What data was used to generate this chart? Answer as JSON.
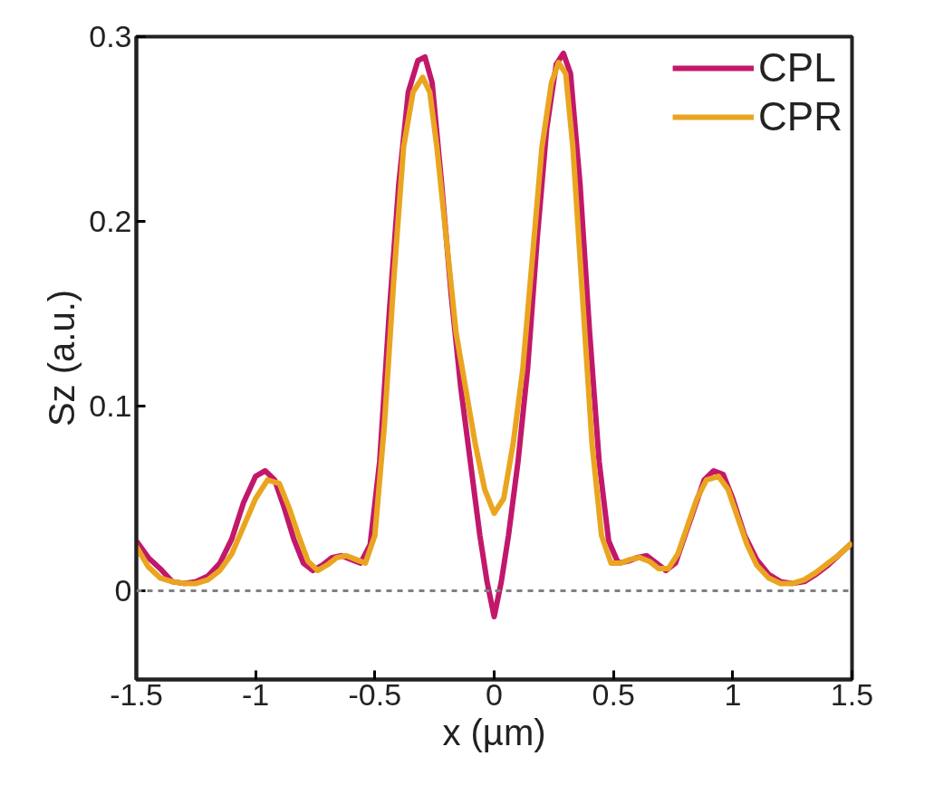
{
  "chart_data": {
    "type": "line",
    "xlabel": "x (µm)",
    "ylabel": "Sz (a.u.)",
    "xlim": [
      -1.5,
      1.5
    ],
    "ylim": [
      -0.048,
      0.3
    ],
    "xticks": [
      -1.5,
      -1,
      -0.5,
      0,
      0.5,
      1,
      1.5
    ],
    "yticks": [
      0,
      0.1,
      0.2,
      0.3
    ],
    "grid": false,
    "legend": "top right",
    "line_style": "solid",
    "ref_lines": [
      {
        "axis": "y",
        "value": 0,
        "color": "#808080",
        "line_style": "dashed"
      }
    ],
    "series": [
      {
        "name": "CPL",
        "color": "#c2186b",
        "x": [
          -1.5,
          -1.45,
          -1.4,
          -1.35,
          -1.3,
          -1.25,
          -1.2,
          -1.15,
          -1.1,
          -1.05,
          -1.0,
          -0.96,
          -0.92,
          -0.88,
          -0.84,
          -0.8,
          -0.76,
          -0.72,
          -0.68,
          -0.64,
          -0.6,
          -0.56,
          -0.52,
          -0.48,
          -0.44,
          -0.4,
          -0.36,
          -0.32,
          -0.29,
          -0.26,
          -0.22,
          -0.18,
          -0.14,
          -0.1,
          -0.06,
          -0.03,
          0,
          0.03,
          0.06,
          0.1,
          0.14,
          0.18,
          0.22,
          0.26,
          0.29,
          0.32,
          0.36,
          0.4,
          0.44,
          0.48,
          0.52,
          0.56,
          0.6,
          0.64,
          0.68,
          0.72,
          0.76,
          0.8,
          0.84,
          0.88,
          0.92,
          0.96,
          1.0,
          1.05,
          1.1,
          1.15,
          1.2,
          1.25,
          1.3,
          1.35,
          1.4,
          1.45,
          1.5
        ],
        "values": [
          0.027,
          0.018,
          0.012,
          0.005,
          0.004,
          0.005,
          0.008,
          0.015,
          0.028,
          0.048,
          0.062,
          0.065,
          0.06,
          0.045,
          0.028,
          0.015,
          0.011,
          0.014,
          0.018,
          0.019,
          0.017,
          0.015,
          0.025,
          0.07,
          0.15,
          0.22,
          0.27,
          0.287,
          0.289,
          0.275,
          0.22,
          0.16,
          0.11,
          0.07,
          0.03,
          0.005,
          -0.014,
          0.005,
          0.03,
          0.07,
          0.12,
          0.19,
          0.25,
          0.285,
          0.291,
          0.28,
          0.22,
          0.14,
          0.07,
          0.027,
          0.015,
          0.016,
          0.018,
          0.019,
          0.015,
          0.011,
          0.015,
          0.03,
          0.045,
          0.06,
          0.065,
          0.063,
          0.05,
          0.03,
          0.017,
          0.009,
          0.005,
          0.004,
          0.005,
          0.009,
          0.014,
          0.02,
          0.026
        ]
      },
      {
        "name": "CPR",
        "color": "#eaa520",
        "x": [
          -1.5,
          -1.45,
          -1.4,
          -1.35,
          -1.3,
          -1.25,
          -1.2,
          -1.15,
          -1.1,
          -1.05,
          -1.0,
          -0.95,
          -0.9,
          -0.86,
          -0.82,
          -0.78,
          -0.74,
          -0.7,
          -0.66,
          -0.62,
          -0.58,
          -0.54,
          -0.5,
          -0.46,
          -0.42,
          -0.38,
          -0.34,
          -0.3,
          -0.27,
          -0.24,
          -0.2,
          -0.16,
          -0.12,
          -0.08,
          -0.04,
          0,
          0.04,
          0.08,
          0.12,
          0.16,
          0.2,
          0.24,
          0.27,
          0.3,
          0.33,
          0.37,
          0.41,
          0.45,
          0.49,
          0.53,
          0.57,
          0.61,
          0.65,
          0.69,
          0.73,
          0.77,
          0.81,
          0.85,
          0.89,
          0.94,
          0.98,
          1.02,
          1.06,
          1.1,
          1.15,
          1.2,
          1.25,
          1.3,
          1.35,
          1.4,
          1.45,
          1.5
        ],
        "values": [
          0.024,
          0.013,
          0.007,
          0.005,
          0.004,
          0.004,
          0.006,
          0.011,
          0.02,
          0.035,
          0.05,
          0.06,
          0.058,
          0.045,
          0.03,
          0.016,
          0.011,
          0.014,
          0.018,
          0.019,
          0.017,
          0.015,
          0.03,
          0.09,
          0.17,
          0.24,
          0.27,
          0.278,
          0.27,
          0.24,
          0.19,
          0.14,
          0.11,
          0.08,
          0.055,
          0.042,
          0.05,
          0.08,
          0.12,
          0.18,
          0.24,
          0.275,
          0.286,
          0.28,
          0.24,
          0.16,
          0.08,
          0.03,
          0.015,
          0.015,
          0.017,
          0.018,
          0.016,
          0.012,
          0.012,
          0.02,
          0.035,
          0.05,
          0.06,
          0.062,
          0.055,
          0.04,
          0.025,
          0.014,
          0.007,
          0.004,
          0.004,
          0.006,
          0.01,
          0.015,
          0.02,
          0.026
        ]
      }
    ]
  }
}
